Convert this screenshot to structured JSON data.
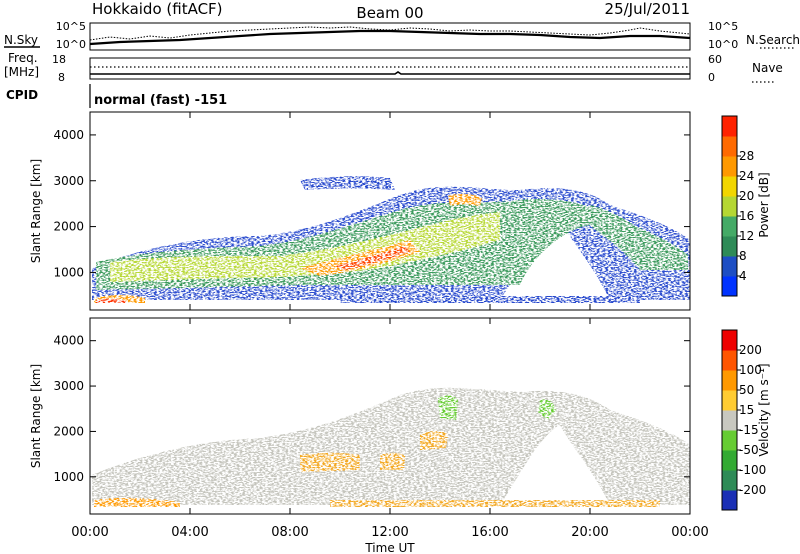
{
  "header": {
    "station": "Hokkaido (fitACF)",
    "beam": "Beam 00",
    "date": "25/Jul/2011"
  },
  "chart_data": [
    {
      "type": "line",
      "panel": "noise",
      "left_label": "N.Sky",
      "right_label": "N.Search",
      "left_ticks": [
        "10^5",
        "10^0"
      ],
      "right_ticks": [
        "10^5",
        "10^0"
      ]
    },
    {
      "type": "line",
      "panel": "frequency",
      "left_label_1": "Freq.",
      "left_label_2": "[MHz]",
      "right_label": "Nave",
      "left_ticks": [
        "18",
        "8"
      ],
      "right_ticks": [
        "60",
        "0"
      ]
    },
    {
      "type": "text",
      "panel": "cpid",
      "label": "CPID",
      "value": "normal (fast) -151"
    },
    {
      "type": "heatmap",
      "panel": "power",
      "ylabel": "Slant Range [km]",
      "y_ticks": [
        "1000",
        "2000",
        "3000",
        "4000"
      ],
      "y_values": [
        1000,
        2000,
        3000,
        4000
      ],
      "ylim": [
        180,
        4500
      ],
      "colorbar_label": "Power [dB]",
      "colorbar_ticks": [
        "4",
        "8",
        "12",
        "16",
        "20",
        "24",
        "28"
      ],
      "colorbar_colors": [
        "#0033ff",
        "#1d4ec4",
        "#2e8b57",
        "#44aa66",
        "#b5d733",
        "#f2d600",
        "#ff9900",
        "#ff6a00",
        "#ff2200"
      ]
    },
    {
      "type": "heatmap",
      "panel": "velocity",
      "ylabel": "Slant Range [km]",
      "y_ticks": [
        "1000",
        "2000",
        "3000",
        "4000"
      ],
      "y_values": [
        1000,
        2000,
        3000,
        4000
      ],
      "ylim": [
        180,
        4500
      ],
      "colorbar_label": "Velocity [m s⁻¹]",
      "colorbar_ticks": [
        "200",
        "100",
        "50",
        "15",
        "-15",
        "-50",
        "-100",
        "-200"
      ],
      "colorbar_colors": [
        "#1a2fb5",
        "#2e8b57",
        "#33aa33",
        "#66cc33",
        "#c8c8c0",
        "#ffcc33",
        "#ff9900",
        "#ff5500",
        "#ee0000"
      ],
      "xlabel": "Time UT",
      "x_ticks": [
        "00:00",
        "04:00",
        "08:00",
        "12:00",
        "16:00",
        "20:00",
        "00:00"
      ],
      "x_values": [
        0,
        4,
        8,
        12,
        16,
        20,
        24
      ]
    }
  ]
}
